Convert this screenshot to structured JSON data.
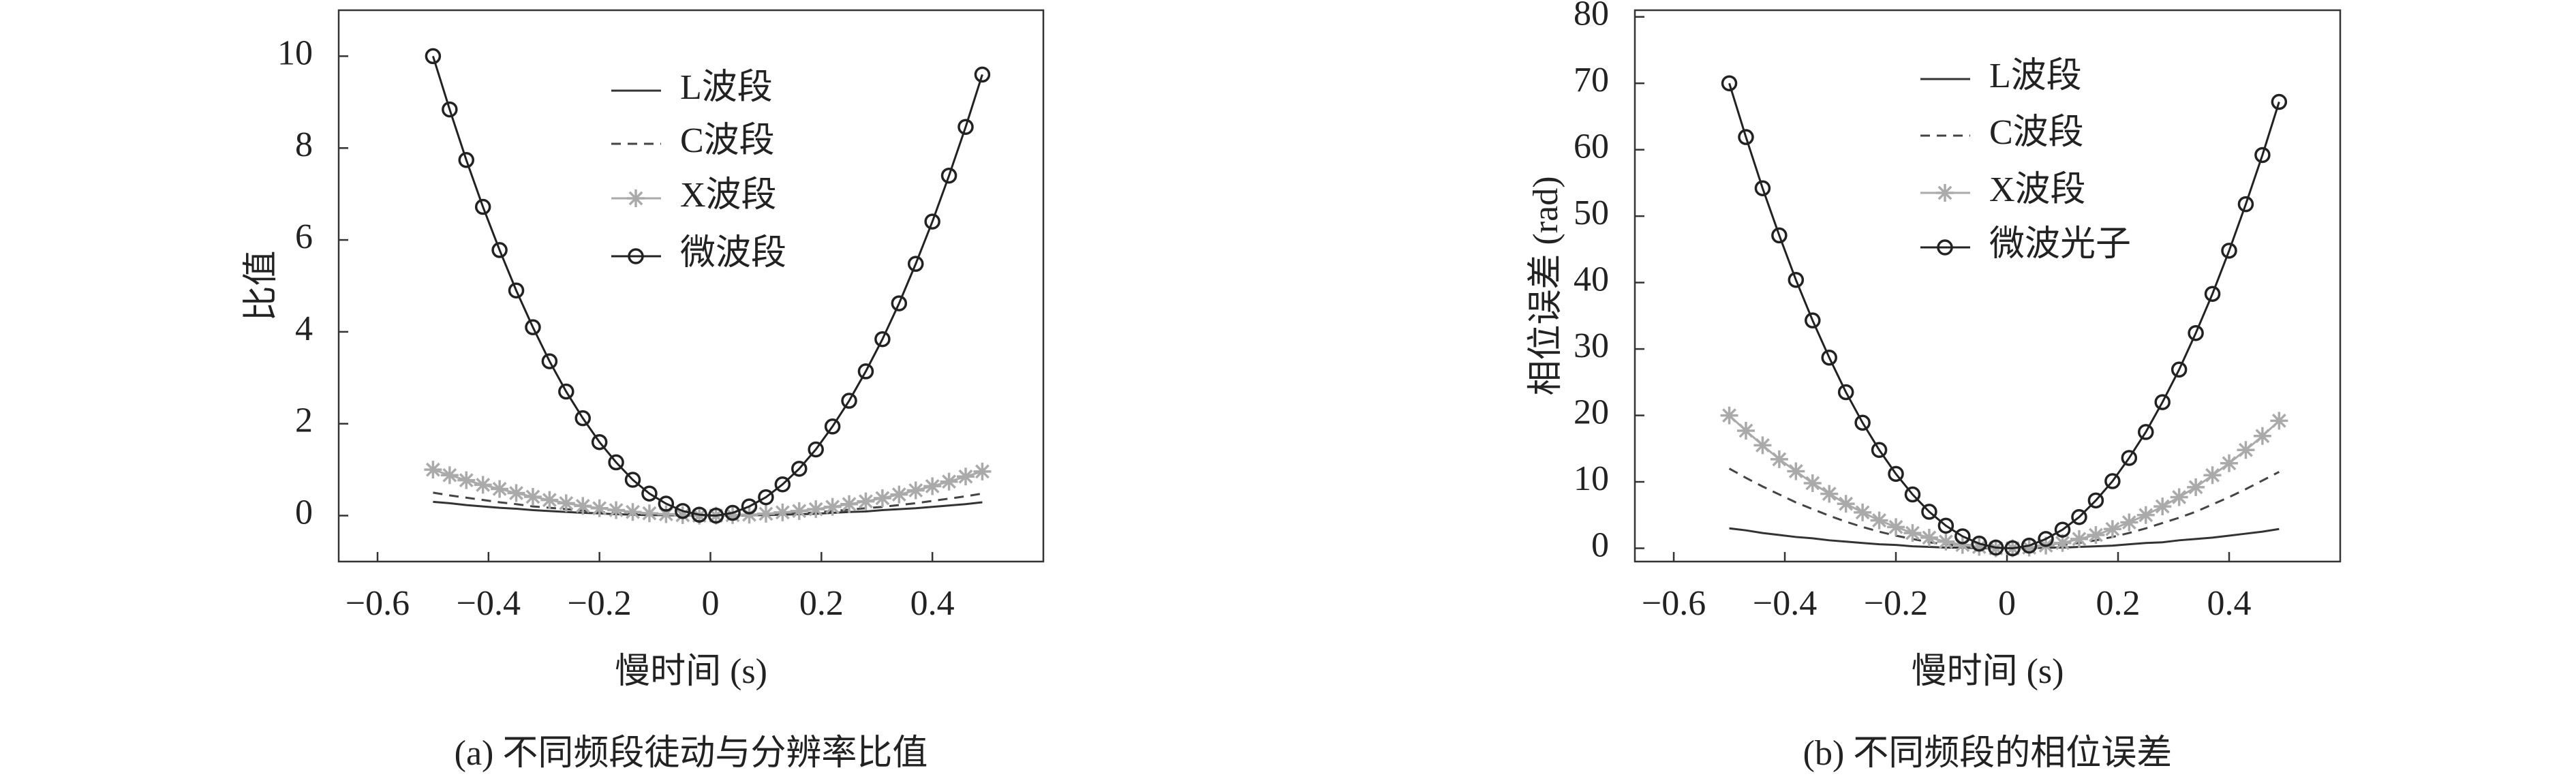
{
  "chart_data": [
    {
      "type": "line",
      "caption": "(a) 不同频段徒动与分辨率比值",
      "xlabel": "慢时间 (s)",
      "ylabel": "比值",
      "xlim": [
        -0.67,
        0.6
      ],
      "ylim": [
        -1,
        11
      ],
      "xticks": [
        {
          "value": -0.6,
          "label": "−0.6"
        },
        {
          "value": -0.4,
          "label": "−0.4"
        },
        {
          "value": -0.2,
          "label": "−0.2"
        },
        0,
        0.2,
        0.4
      ],
      "yticks": [
        0,
        2,
        4,
        6,
        8,
        10
      ],
      "x": [
        -0.5,
        -0.47,
        -0.44,
        -0.41,
        -0.38,
        -0.35,
        -0.32,
        -0.29,
        -0.26,
        -0.23,
        -0.2,
        -0.17,
        -0.14,
        -0.11,
        -0.08,
        -0.05,
        -0.02,
        0.01,
        0.04,
        0.07,
        0.1,
        0.13,
        0.16,
        0.19,
        0.22,
        0.25,
        0.28,
        0.31,
        0.34,
        0.37,
        0.4,
        0.43,
        0.46,
        0.49
      ],
      "series": [
        {
          "name": "L波段",
          "color": "#333333",
          "dash": false,
          "marker": "none",
          "values": [
            0.3,
            0.27,
            0.23,
            0.2,
            0.17,
            0.15,
            0.12,
            0.1,
            0.08,
            0.06,
            0.05,
            0.03,
            0.02,
            0.01,
            0.01,
            0,
            0,
            0,
            0,
            0.01,
            0.01,
            0.02,
            0.03,
            0.04,
            0.06,
            0.08,
            0.09,
            0.12,
            0.14,
            0.16,
            0.19,
            0.22,
            0.25,
            0.29
          ]
        },
        {
          "name": "C波段",
          "color": "#444444",
          "dash": true,
          "marker": "none",
          "values": [
            0.5,
            0.44,
            0.39,
            0.34,
            0.29,
            0.25,
            0.2,
            0.17,
            0.14,
            0.11,
            0.08,
            0.06,
            0.04,
            0.02,
            0.01,
            0.01,
            0,
            0,
            0,
            0.01,
            0.02,
            0.03,
            0.05,
            0.07,
            0.1,
            0.13,
            0.16,
            0.19,
            0.23,
            0.27,
            0.32,
            0.37,
            0.42,
            0.48
          ]
        },
        {
          "name": "X波段",
          "color": "#aaaaaa",
          "dash": false,
          "marker": "star",
          "values": [
            1,
            0.88,
            0.77,
            0.67,
            0.58,
            0.49,
            0.41,
            0.34,
            0.27,
            0.21,
            0.16,
            0.12,
            0.08,
            0.05,
            0.03,
            0.01,
            0,
            0,
            0.01,
            0.02,
            0.04,
            0.07,
            0.1,
            0.14,
            0.19,
            0.25,
            0.31,
            0.38,
            0.46,
            0.55,
            0.64,
            0.74,
            0.85,
            0.96
          ]
        },
        {
          "name": "微波段",
          "color": "#222222",
          "dash": false,
          "marker": "circle",
          "values": [
            10,
            8.84,
            7.74,
            6.72,
            5.78,
            4.9,
            4.1,
            3.36,
            2.7,
            2.12,
            1.6,
            1.16,
            0.78,
            0.48,
            0.26,
            0.1,
            0.02,
            0,
            0.06,
            0.2,
            0.4,
            0.68,
            1.02,
            1.44,
            1.94,
            2.5,
            3.14,
            3.84,
            4.62,
            5.48,
            6.4,
            7.4,
            8.46,
            9.6
          ]
        }
      ]
    },
    {
      "type": "line",
      "caption": "(b) 不同频段的相位误差",
      "xlabel": "慢时间 (s)",
      "ylabel": "相位误差 (rad)",
      "xlim": [
        -0.67,
        0.6
      ],
      "ylim": [
        -2,
        81
      ],
      "xticks": [
        {
          "value": -0.6,
          "label": "−0.6"
        },
        {
          "value": -0.4,
          "label": "−0.4"
        },
        {
          "value": -0.2,
          "label": "−0.2"
        },
        0,
        0.2,
        0.4
      ],
      "yticks": [
        0,
        10,
        20,
        30,
        40,
        50,
        60,
        70,
        80
      ],
      "x": [
        -0.5,
        -0.47,
        -0.44,
        -0.41,
        -0.38,
        -0.35,
        -0.32,
        -0.29,
        -0.26,
        -0.23,
        -0.2,
        -0.17,
        -0.14,
        -0.11,
        -0.08,
        -0.05,
        -0.02,
        0.01,
        0.04,
        0.07,
        0.1,
        0.13,
        0.16,
        0.19,
        0.22,
        0.25,
        0.28,
        0.31,
        0.34,
        0.37,
        0.4,
        0.43,
        0.46,
        0.49
      ],
      "series": [
        {
          "name": "L波段",
          "color": "#333333",
          "dash": false,
          "marker": "none",
          "values": [
            3,
            2.7,
            2.3,
            2,
            1.7,
            1.5,
            1.2,
            1,
            0.8,
            0.6,
            0.5,
            0.3,
            0.2,
            0.1,
            0.1,
            0,
            0,
            0,
            0,
            0.1,
            0.1,
            0.2,
            0.3,
            0.4,
            0.6,
            0.8,
            0.9,
            1.2,
            1.4,
            1.6,
            1.9,
            2.2,
            2.5,
            2.9
          ]
        },
        {
          "name": "C波段",
          "color": "#444444",
          "dash": true,
          "marker": "none",
          "values": [
            12,
            10.6,
            9.3,
            8.1,
            6.9,
            5.9,
            4.9,
            4,
            3.2,
            2.5,
            1.9,
            1.4,
            0.9,
            0.6,
            0.3,
            0.1,
            0,
            0,
            0.1,
            0.2,
            0.5,
            0.8,
            1.2,
            1.7,
            2.3,
            3,
            3.8,
            4.6,
            5.5,
            6.6,
            7.7,
            8.9,
            10.2,
            11.5
          ]
        },
        {
          "name": "X波段",
          "color": "#aaaaaa",
          "dash": false,
          "marker": "star",
          "values": [
            20,
            17.7,
            15.5,
            13.4,
            11.6,
            9.8,
            8.2,
            6.7,
            5.4,
            4.2,
            3.2,
            2.3,
            1.6,
            1,
            0.5,
            0.2,
            0,
            0,
            0.1,
            0.4,
            0.8,
            1.4,
            2,
            2.9,
            3.9,
            5,
            6.3,
            7.7,
            9.2,
            11,
            12.8,
            14.8,
            16.9,
            19.2
          ]
        },
        {
          "name": "微波光子",
          "color": "#222222",
          "dash": false,
          "marker": "circle",
          "values": [
            70,
            61.9,
            54.2,
            47.1,
            40.4,
            34.3,
            28.7,
            23.5,
            18.9,
            14.8,
            11.2,
            8.1,
            5.5,
            3.4,
            1.8,
            0.7,
            0.1,
            0,
            0.4,
            1.4,
            2.8,
            4.7,
            7.2,
            10.1,
            13.6,
            17.5,
            22,
            26.9,
            32.4,
            38.3,
            44.8,
            51.8,
            59.2,
            67.2
          ]
        }
      ]
    }
  ]
}
